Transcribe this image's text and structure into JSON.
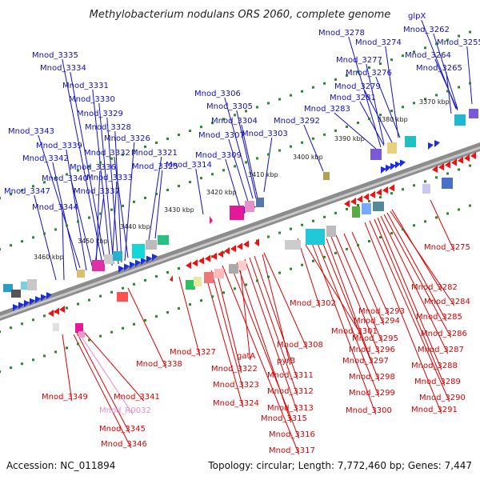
{
  "title": "Methylobacterium nodulans ORS 2060, complete genome",
  "footer": {
    "accession": "Accession: NC_011894",
    "summary": "Topology: circular; Length: 7,772,460 bp; Genes: 7,447"
  },
  "ticks": [
    "3370 kbp",
    "3380 kbp",
    "3390 kbp",
    "3400 kbp",
    "3410 kbp",
    "3420 kbp",
    "3430 kbp",
    "3440 kbp",
    "3450 kbp",
    "3460 kbp"
  ],
  "colors": {
    "forward_label": "#1010c8",
    "reverse_label": "#dd0000",
    "rna_label": "#ee88cc",
    "backbone": "#8c8c8c",
    "tick": "#2a8a2a"
  },
  "labels_top": [
    "Mnod_3335",
    "Mnod_3334",
    "Mnod_3331",
    "Mnod_3330",
    "Mnod_3329",
    "Mnod_3328",
    "Mnod_3326",
    "Mnod_3343",
    "Mnod_3339",
    "Mnod_3332",
    "Mnod_3342",
    "Mnod_3336",
    "Mnod_3340",
    "Mnod_3333",
    "Mnod_3337",
    "Mnod_3347",
    "Mnod_3344",
    "Mnod_3321",
    "Mnod_3325",
    "Mnod_3314",
    "Mnod_3309",
    "Mnod_3306",
    "Mnod_3305",
    "Mnod_3304",
    "Mnod_3307",
    "Mnod_3303",
    "Mnod_3292",
    "Mnod_3283",
    "Mnod_3281",
    "Mnod_3279",
    "Mnod_3276",
    "Mnod_3277",
    "Mnod_3278",
    "Mnod_3274",
    "glpX",
    "Mnod_3262",
    "Mnod_3255",
    "Mnod_3264",
    "Mnod_3265"
  ],
  "labels_bottom": [
    "Mnod_3275",
    "Mnod_3282",
    "Mnod_3284",
    "Mnod_3285",
    "Mnod_3286",
    "Mnod_3287",
    "Mnod_3288",
    "Mnod_3289",
    "Mnod_3290",
    "Mnod_3291",
    "Mnod_3302",
    "Mnod_3293",
    "Mnod_3294",
    "Mnod_3295",
    "Mnod_3296",
    "Mnod_3297",
    "Mnod_3298",
    "Mnod_3299",
    "Mnod_3300",
    "Mnod_3301",
    "Mnod_3308",
    "pyrB",
    "Mnod_3311",
    "Mnod_3312",
    "Mnod_3313",
    "Mnod_3315",
    "Mnod_3316",
    "Mnod_3317",
    "gatA",
    "Mnod_3322",
    "Mnod_3323",
    "Mnod_3324",
    "Mnod_3327",
    "Mnod_3338",
    "Mnod_3341",
    "Mnod_3349",
    "Mnod_3345",
    "Mnod_3346"
  ],
  "labels_rna": [
    "Mnod_R0032"
  ]
}
